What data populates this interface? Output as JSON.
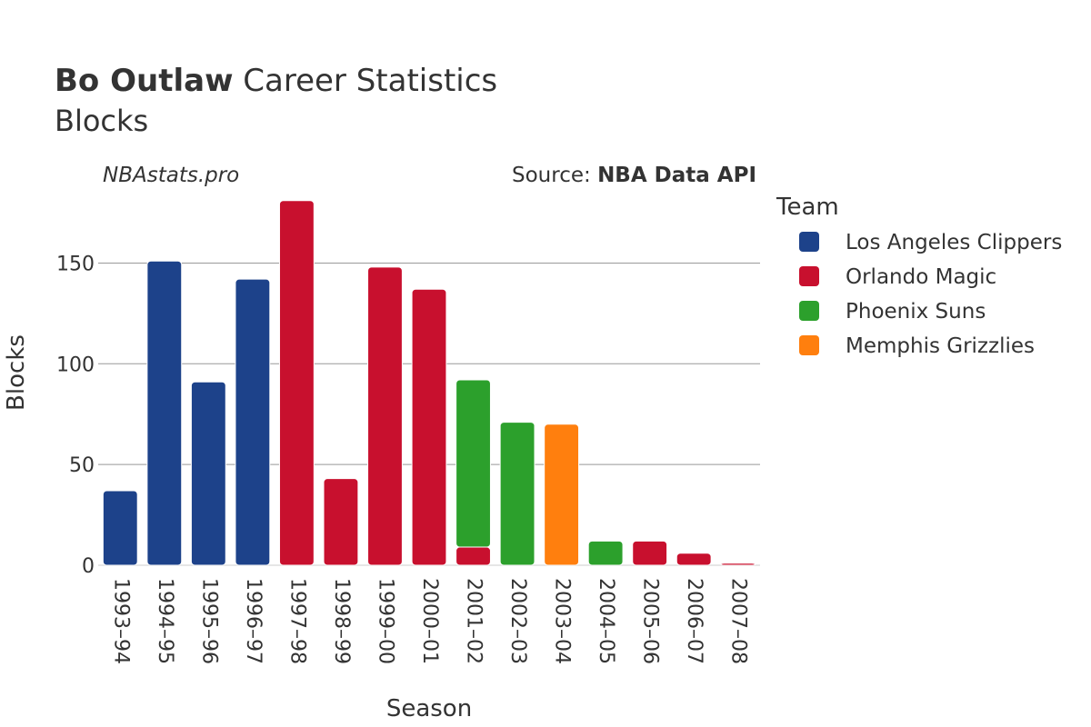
{
  "header": {
    "title_bold": "Bo Outlaw",
    "title_rest": " Career Statistics",
    "subtitle": "Blocks",
    "watermark": "NBAstats.pro",
    "source_prefix": "Source: ",
    "source_name": "NBA Data API"
  },
  "legend": {
    "title": "Team",
    "items": [
      {
        "label": "Los Angeles Clippers",
        "color": "#1d428a"
      },
      {
        "label": "Orlando Magic",
        "color": "#c8102e"
      },
      {
        "label": "Phoenix Suns",
        "color": "#2ca02c"
      },
      {
        "label": "Memphis Grizzlies",
        "color": "#ff7f0e"
      }
    ]
  },
  "chart_data": {
    "type": "bar",
    "stacked": true,
    "xlabel": "Season",
    "ylabel": "Blocks",
    "ylim": [
      0,
      180
    ],
    "yticks": [
      0,
      50,
      100,
      150
    ],
    "grid": true,
    "legend_position": "right",
    "categories": [
      "1993–94",
      "1994–95",
      "1995–96",
      "1996–97",
      "1997–98",
      "1998–99",
      "1999–00",
      "2000–01",
      "2001–02",
      "2002–03",
      "2003–04",
      "2004–05",
      "2005–06",
      "2006–07",
      "2007–08"
    ],
    "series": [
      {
        "name": "Los Angeles Clippers",
        "color": "#1d428a",
        "values": [
          37,
          151,
          91,
          142,
          0,
          0,
          0,
          0,
          0,
          0,
          0,
          0,
          0,
          0,
          0
        ]
      },
      {
        "name": "Orlando Magic",
        "color": "#c8102e",
        "values": [
          0,
          0,
          0,
          0,
          181,
          43,
          148,
          137,
          9,
          0,
          0,
          0,
          12,
          6,
          1
        ]
      },
      {
        "name": "Phoenix Suns",
        "color": "#2ca02c",
        "values": [
          0,
          0,
          0,
          0,
          0,
          0,
          0,
          0,
          83,
          71,
          0,
          12,
          0,
          0,
          0
        ]
      },
      {
        "name": "Memphis Grizzlies",
        "color": "#ff7f0e",
        "values": [
          0,
          0,
          0,
          0,
          0,
          0,
          0,
          0,
          0,
          0,
          70,
          0,
          0,
          0,
          0
        ]
      }
    ]
  }
}
